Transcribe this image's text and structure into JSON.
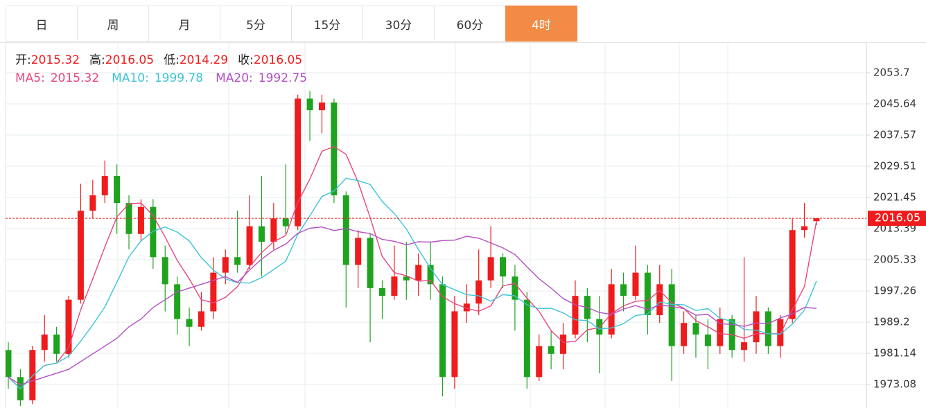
{
  "tabs": [
    "日",
    "周",
    "月",
    "5分",
    "15分",
    "30分",
    "60分",
    "4时"
  ],
  "active_tab": 7,
  "chart_data": {
    "type": "candlestick",
    "ohlc_labels": [
      "开:",
      "高:",
      "低:",
      "收:"
    ],
    "ylim": [
      1967.0,
      2061.4
    ],
    "yticks": [
      1973.08,
      1981.14,
      1989.2,
      1997.26,
      2005.33,
      2013.39,
      2021.45,
      2029.51,
      2037.57,
      2045.64,
      2053.7
    ],
    "grid": true,
    "up_color": "#ee1c1c",
    "down_color": "#1fa31f",
    "open": [
      1982,
      1975,
      1969,
      1982,
      1986,
      1981,
      1995,
      2018,
      2022,
      2027,
      2020,
      2012,
      2019,
      2006,
      1999,
      1990,
      1988,
      1992,
      2002,
      2006,
      2004,
      2014,
      2010,
      2016,
      2014,
      2047,
      2044,
      2046,
      2022,
      2004,
      2011,
      1998,
      1996,
      2001,
      2000,
      2004,
      1999,
      1975,
      1992,
      1994,
      2000,
      2006,
      2001,
      1995,
      1975,
      1983,
      1981,
      1986,
      1996,
      1990,
      1986,
      1999,
      1996,
      2002,
      1991,
      1999,
      1983,
      1989,
      1986,
      1983,
      1990,
      1982,
      1984,
      1992,
      1983,
      1990,
      2013,
      2015.32
    ],
    "high": [
      1984,
      1977,
      1983,
      1991,
      1988,
      1996,
      2025,
      2026,
      2031,
      2030,
      2022,
      2021,
      2021,
      2009,
      2001,
      1993,
      1997,
      2006,
      2008,
      2018,
      2022,
      2027,
      2020,
      2030,
      2048,
      2049,
      2048,
      2047,
      2023,
      2013,
      2012,
      2000,
      2009,
      2010,
      2007,
      2010,
      2001,
      1996,
      1999,
      2008,
      2014,
      2007,
      2004,
      1997,
      1986,
      1987,
      1989,
      2000,
      1998,
      1996,
      2003,
      2002,
      2009,
      2004,
      2004,
      2003,
      1992,
      1991,
      1990,
      1993,
      1991,
      2006,
      1996,
      1993,
      1991,
      2016,
      2020,
      2016.05
    ],
    "low": [
      1972,
      1967.5,
      1968,
      1979,
      1979,
      1980,
      1994,
      2016,
      2020,
      2012,
      2008,
      2010,
      2003,
      1992,
      1986,
      1983,
      1987,
      1990,
      1999,
      2002,
      2003,
      2001,
      2008,
      2012,
      2013,
      2036,
      2038,
      2020,
      1993,
      1998,
      1984,
      1990,
      1995,
      1995,
      1996,
      1995,
      1970,
      1972,
      1989,
      1991,
      1998,
      1998,
      1987,
      1972,
      1974,
      1977,
      1977,
      1985,
      1984,
      1976,
      1985,
      1992,
      1995,
      1986,
      1989,
      1974,
      1981,
      1980,
      1977,
      1981,
      1980,
      1979,
      1981,
      1981,
      1980,
      1989,
      2011,
      2014.29
    ],
    "close": [
      1975,
      1969,
      1982,
      1986,
      1981,
      1995,
      2018,
      2022,
      2027,
      2020,
      2012,
      2019,
      2006,
      1999,
      1990,
      1988,
      1992,
      2002,
      2006,
      2004,
      2014,
      2010,
      2016,
      2014,
      2047,
      2044,
      2046,
      2022,
      2004,
      2011,
      1998,
      1996,
      2001,
      2000,
      2004,
      1999,
      1975,
      1992,
      1994,
      2000,
      2006,
      2001,
      1995,
      1975,
      1983,
      1981,
      1986,
      1996,
      1990,
      1986,
      1999,
      1996,
      2002,
      1991,
      1999,
      1983,
      1989,
      1986,
      1983,
      1990,
      1982,
      1984,
      1992,
      1983,
      1990,
      2013,
      2014,
      2016.05
    ],
    "series": [
      {
        "name": "MA5:",
        "color": "#e8457c",
        "values": [
          1975,
          1972,
          1975.3,
          1978,
          1978.6,
          1982.6,
          1992.4,
          2000.4,
          2008.6,
          2016.4,
          2019.8,
          2020,
          2016.8,
          2011.2,
          2005.2,
          2000.4,
          1995,
          1994.2,
          1995.6,
          1998.4,
          2003.6,
          2007.2,
          2010,
          2011.6,
          2020.2,
          2026.2,
          2033.4,
          2034.6,
          2032.6,
          2025.4,
          2016.2,
          2006.2,
          2002,
          2001.2,
          1999.8,
          2000,
          1995.8,
          1994,
          1992.8,
          1992,
          1993.4,
          1998.6,
          1999.2,
          1995.4,
          1992,
          1987,
          1984,
          1984.2,
          1987.2,
          1987.8,
          1991.4,
          1993.4,
          1994.6,
          1994.8,
          1997.4,
          1994.2,
          1992.8,
          1989.6,
          1988,
          1986.2,
          1986,
          1985,
          1986.2,
          1986.2,
          1986.2,
          1992.4,
          1998.4,
          2015.32
        ]
      },
      {
        "name": "MA10:",
        "color": "#3cc4d6",
        "values": [
          1975,
          1972,
          1975.3,
          1978,
          1978.6,
          1980.4,
          1984.3,
          1988.5,
          1993.1,
          1999.5,
          2006.1,
          2010.2,
          2012.7,
          2013.8,
          2012.5,
          2010.2,
          2005.9,
          2002.7,
          2000.4,
          1999.4,
          1999.3,
          2000.7,
          2002.8,
          2005,
          2011.9,
          2016.7,
          2021.7,
          2023.1,
          2026.4,
          2025.8,
          2024.8,
          2020.4,
          2017.3,
          2013.3,
          2008,
          2003.1,
          1998.9,
          1997.6,
          1996.3,
          1996,
          1994.6,
          1996.3,
          1996,
          1993.7,
          1992.7,
          1992.8,
          1991.6,
          1989.8,
          1989.6,
          1987.4,
          1987.7,
          1988.8,
          1990.9,
          1991.3,
          1994.4,
          1993.8,
          1993.7,
          1992.2,
          1992.7,
          1990.2,
          1989.4,
          1987.3,
          1987.1,
          1986.2,
          1986.1,
          1988.7,
          1992.3,
          1999.78
        ]
      },
      {
        "name": "MA20:",
        "color": "#b44ec4",
        "values": [
          1975,
          1973,
          1974,
          1975,
          1976,
          1977,
          1979,
          1981,
          1983,
          1985,
          1988,
          1990,
          1993,
          1995,
          1997,
          1998,
          1999,
          2000,
          2001,
          1999.5,
          2002.7,
          2005.5,
          2007.8,
          2009.4,
          2012.2,
          2013.5,
          2013.8,
          2012.9,
          2013.4,
          2012.6,
          2012.1,
          2010.6,
          2010.1,
          2009.2,
          2010,
          2009.9,
          2010.3,
          2010.4,
          2011.4,
          2010.9,
          2009.7,
          2008.4,
          2006.7,
          2003.5,
          2000.4,
          1998,
          1995.3,
          1993.7,
          1993,
          1991.7,
          1991.2,
          1992.6,
          1993.5,
          1992.5,
          1993.6,
          1993.3,
          1992.7,
          1991,
          1991.2,
          1988.8,
          1988.6,
          1988.1,
          1989,
          1988.8,
          1990.3,
          1991.3,
          1993,
          1992.75
        ]
      }
    ]
  }
}
